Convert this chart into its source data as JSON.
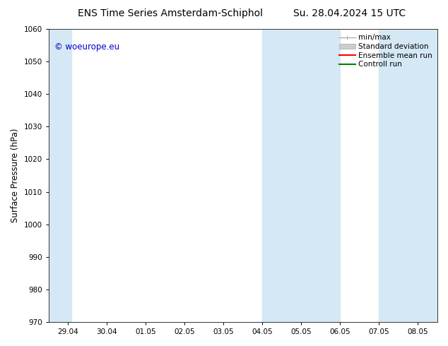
{
  "title_left": "ENS Time Series Amsterdam-Schiphol",
  "title_right": "Su. 28.04.2024 15 UTC",
  "ylabel": "Surface Pressure (hPa)",
  "ylim": [
    970,
    1060
  ],
  "yticks": [
    970,
    980,
    990,
    1000,
    1010,
    1020,
    1030,
    1040,
    1050,
    1060
  ],
  "xtick_labels": [
    "29.04",
    "30.04",
    "01.05",
    "02.05",
    "03.05",
    "04.05",
    "05.05",
    "06.05",
    "07.05",
    "08.05"
  ],
  "bg_color": "#ffffff",
  "plot_bg_color": "#ffffff",
  "shaded_color": "#d4e8f5",
  "legend_items": [
    {
      "label": "min/max",
      "color": "#b0b0b0",
      "lw": 1.0
    },
    {
      "label": "Standard deviation",
      "color": "#cccccc",
      "lw": 6
    },
    {
      "label": "Ensemble mean run",
      "color": "#ff0000",
      "lw": 1.5
    },
    {
      "label": "Controll run",
      "color": "#008000",
      "lw": 1.5
    }
  ],
  "watermark_text": "© woeurope.eu",
  "watermark_color": "#0000cc",
  "title_fontsize": 10,
  "tick_fontsize": 7.5,
  "ylabel_fontsize": 8.5,
  "legend_fontsize": 7.5
}
